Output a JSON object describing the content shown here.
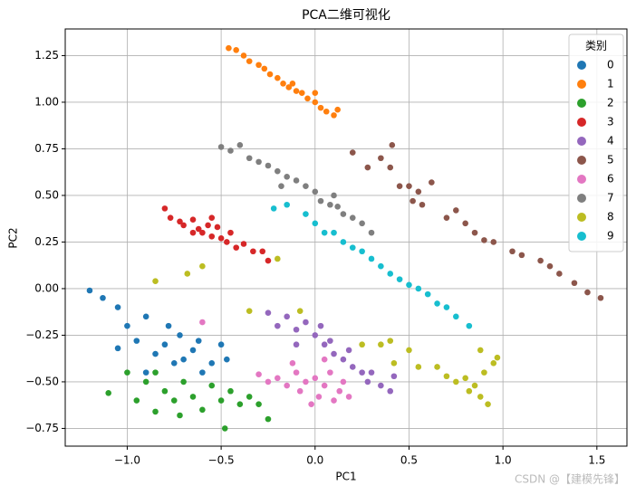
{
  "chart_data": {
    "type": "scatter",
    "title": "PCA二维可视化",
    "x_label": "PC1",
    "y_label": "PC2",
    "legend_title": "类别",
    "legend": "upper right",
    "grid": true,
    "watermark": "CSDN @【建模先锋】",
    "xlim": [
      -1.33,
      1.66
    ],
    "ylim": [
      -0.845,
      1.393
    ],
    "xticks": [
      {
        "value": -1,
        "label": "−1.0"
      },
      {
        "value": -0.5,
        "label": "−0.5"
      },
      {
        "value": 0,
        "label": "0.0"
      },
      {
        "value": 0.5,
        "label": "0.5"
      },
      {
        "value": 1,
        "label": "1.0"
      },
      {
        "value": 1.5,
        "label": "1.5"
      }
    ],
    "yticks": [
      {
        "value": -0.75,
        "label": "−0.75"
      },
      {
        "value": -0.5,
        "label": "−0.50"
      },
      {
        "value": -0.25,
        "label": "−0.25"
      },
      {
        "value": 0,
        "label": "0.00"
      },
      0.25,
      {
        "value": 0.5,
        "label": "0.50"
      },
      0.75,
      {
        "value": 1,
        "label": "1.00"
      },
      1.25
    ],
    "series": [
      {
        "name": "0",
        "color": "#1f77b4",
        "x": [
          -1.2,
          -1.13,
          -1.05,
          -1.0,
          -0.95,
          -0.9,
          -0.85,
          -0.8,
          -0.75,
          -0.72,
          -0.7,
          -0.65,
          -0.6,
          -0.55,
          -0.5,
          -0.47,
          -1.05,
          -0.9,
          -0.78,
          -0.62
        ],
        "y": [
          -0.01,
          -0.05,
          -0.1,
          -0.2,
          -0.28,
          -0.15,
          -0.35,
          -0.3,
          -0.4,
          -0.25,
          -0.38,
          -0.33,
          -0.45,
          -0.4,
          -0.3,
          -0.38,
          -0.32,
          -0.45,
          -0.2,
          -0.28
        ]
      },
      {
        "name": "1",
        "color": "#ff7f0e",
        "x": [
          -0.46,
          -0.42,
          -0.38,
          -0.35,
          -0.3,
          -0.27,
          -0.24,
          -0.2,
          -0.17,
          -0.14,
          -0.1,
          -0.07,
          -0.04,
          0.0,
          0.03,
          0.06,
          0.1,
          0.12,
          -0.12,
          0.0
        ],
        "y": [
          1.29,
          1.28,
          1.25,
          1.22,
          1.2,
          1.18,
          1.15,
          1.13,
          1.1,
          1.08,
          1.06,
          1.05,
          1.02,
          1.0,
          0.97,
          0.95,
          0.93,
          0.96,
          1.1,
          1.05
        ]
      },
      {
        "name": "2",
        "color": "#2ca02c",
        "x": [
          -1.1,
          -1.0,
          -0.95,
          -0.9,
          -0.85,
          -0.8,
          -0.75,
          -0.7,
          -0.65,
          -0.6,
          -0.55,
          -0.5,
          -0.45,
          -0.4,
          -0.35,
          -0.3,
          -0.25,
          -0.48,
          -0.72,
          -0.85
        ],
        "y": [
          -0.56,
          -0.45,
          -0.6,
          -0.5,
          -0.66,
          -0.55,
          -0.6,
          -0.5,
          -0.58,
          -0.65,
          -0.52,
          -0.6,
          -0.55,
          -0.62,
          -0.58,
          -0.62,
          -0.7,
          -0.75,
          -0.68,
          -0.45
        ]
      },
      {
        "name": "3",
        "color": "#d62728",
        "x": [
          -0.8,
          -0.77,
          -0.72,
          -0.7,
          -0.65,
          -0.62,
          -0.6,
          -0.57,
          -0.55,
          -0.52,
          -0.5,
          -0.47,
          -0.45,
          -0.42,
          -0.38,
          -0.33,
          -0.28,
          -0.25,
          -0.55,
          -0.65
        ],
        "y": [
          0.43,
          0.38,
          0.36,
          0.34,
          0.37,
          0.32,
          0.3,
          0.34,
          0.28,
          0.33,
          0.27,
          0.25,
          0.3,
          0.22,
          0.24,
          0.2,
          0.2,
          0.15,
          0.38,
          0.3
        ]
      },
      {
        "name": "4",
        "color": "#9467bd",
        "x": [
          -0.25,
          -0.2,
          -0.15,
          -0.1,
          -0.05,
          0.0,
          0.03,
          0.05,
          0.08,
          0.1,
          0.15,
          0.18,
          0.2,
          0.25,
          0.28,
          0.3,
          0.35,
          0.4,
          0.42,
          -0.1
        ],
        "y": [
          -0.13,
          -0.2,
          -0.15,
          -0.22,
          -0.18,
          -0.25,
          -0.2,
          -0.3,
          -0.28,
          -0.35,
          -0.38,
          -0.33,
          -0.42,
          -0.45,
          -0.5,
          -0.45,
          -0.52,
          -0.55,
          -0.47,
          -0.3
        ]
      },
      {
        "name": "5",
        "color": "#8c564b",
        "x": [
          0.2,
          0.28,
          0.35,
          0.4,
          0.41,
          0.45,
          0.5,
          0.55,
          0.52,
          0.57,
          0.7,
          0.75,
          0.8,
          0.85,
          0.9,
          0.95,
          1.05,
          1.1,
          1.2,
          1.3,
          1.38,
          1.45,
          1.52,
          1.25,
          0.62
        ],
        "y": [
          0.73,
          0.65,
          0.7,
          0.65,
          0.77,
          0.55,
          0.55,
          0.52,
          0.47,
          0.45,
          0.38,
          0.42,
          0.35,
          0.3,
          0.26,
          0.25,
          0.2,
          0.18,
          0.15,
          0.08,
          0.03,
          -0.02,
          -0.05,
          0.12,
          0.57
        ]
      },
      {
        "name": "6",
        "color": "#e377c2",
        "x": [
          -0.3,
          -0.25,
          -0.2,
          -0.15,
          -0.1,
          -0.08,
          -0.05,
          0.0,
          0.02,
          0.05,
          0.08,
          0.1,
          0.13,
          0.15,
          0.18,
          -0.02,
          -0.12,
          -0.6,
          0.05
        ],
        "y": [
          -0.46,
          -0.5,
          -0.48,
          -0.52,
          -0.45,
          -0.55,
          -0.5,
          -0.48,
          -0.58,
          -0.52,
          -0.45,
          -0.6,
          -0.55,
          -0.5,
          -0.58,
          -0.62,
          -0.4,
          -0.18,
          -0.38
        ]
      },
      {
        "name": "7",
        "color": "#7f7f7f",
        "x": [
          -0.5,
          -0.45,
          -0.4,
          -0.35,
          -0.3,
          -0.25,
          -0.2,
          -0.15,
          -0.1,
          -0.05,
          0.0,
          0.03,
          0.08,
          0.12,
          0.15,
          0.2,
          0.25,
          0.3,
          -0.18,
          0.1
        ],
        "y": [
          0.76,
          0.74,
          0.77,
          0.7,
          0.68,
          0.66,
          0.63,
          0.6,
          0.58,
          0.55,
          0.52,
          0.47,
          0.45,
          0.44,
          0.4,
          0.38,
          0.35,
          0.3,
          0.55,
          0.5
        ]
      },
      {
        "name": "8",
        "color": "#bcbd22",
        "x": [
          -0.85,
          -0.68,
          -0.6,
          -0.2,
          -0.35,
          -0.08,
          0.25,
          0.35,
          0.4,
          0.5,
          0.42,
          0.55,
          0.65,
          0.7,
          0.75,
          0.8,
          0.85,
          0.88,
          0.9,
          0.95,
          0.97,
          0.92,
          0.82,
          0.88
        ],
        "y": [
          0.04,
          0.08,
          0.12,
          0.16,
          -0.12,
          -0.12,
          -0.3,
          -0.3,
          -0.28,
          -0.33,
          -0.4,
          -0.42,
          -0.42,
          -0.47,
          -0.5,
          -0.48,
          -0.52,
          -0.58,
          -0.45,
          -0.4,
          -0.37,
          -0.62,
          -0.55,
          -0.33
        ]
      },
      {
        "name": "9",
        "color": "#17becf",
        "x": [
          -0.22,
          -0.15,
          -0.05,
          0.0,
          0.05,
          0.1,
          0.15,
          0.2,
          0.25,
          0.3,
          0.35,
          0.4,
          0.45,
          0.5,
          0.55,
          0.6,
          0.65,
          0.7,
          0.75,
          0.82
        ],
        "y": [
          0.43,
          0.45,
          0.4,
          0.35,
          0.3,
          0.3,
          0.25,
          0.22,
          0.2,
          0.16,
          0.12,
          0.08,
          0.05,
          0.02,
          0.0,
          -0.03,
          -0.08,
          -0.1,
          -0.15,
          -0.2
        ]
      }
    ]
  }
}
